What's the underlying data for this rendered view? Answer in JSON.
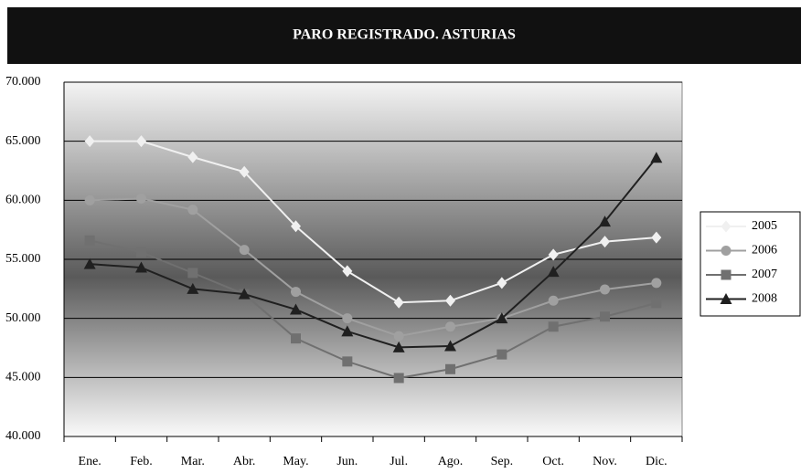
{
  "chart_data": {
    "type": "line",
    "title": "PARO REGISTRADO. ASTURIAS",
    "categories": [
      "Ene.",
      "Feb.",
      "Mar.",
      "Abr.",
      "May.",
      "Jun.",
      "Jul.",
      "Ago.",
      "Sep.",
      "Oct.",
      "Nov.",
      "Dic."
    ],
    "series": [
      {
        "name": "2005",
        "color": "#f0f0f0",
        "marker": "diamond",
        "values": [
          65000,
          65000,
          63650,
          62400,
          57800,
          54000,
          51350,
          51500,
          53000,
          55400,
          56500,
          56850
        ]
      },
      {
        "name": "2006",
        "color": "#a0a0a0",
        "marker": "circle",
        "values": [
          60000,
          60150,
          59200,
          55800,
          52250,
          50000,
          48500,
          49300,
          50000,
          51500,
          52450,
          53000
        ]
      },
      {
        "name": "2007",
        "color": "#707070",
        "marker": "square",
        "values": [
          56600,
          55600,
          53850,
          52050,
          48300,
          46350,
          44950,
          45700,
          46950,
          49300,
          50150,
          51300
        ]
      },
      {
        "name": "2008",
        "color": "#202020",
        "marker": "triangle",
        "values": [
          54600,
          54300,
          52500,
          52050,
          50750,
          48900,
          47550,
          47650,
          50000,
          53950,
          58200,
          63600
        ]
      }
    ],
    "ylim": [
      40000,
      70000
    ],
    "yticks": [
      {
        "value": 40000,
        "label": "40.000"
      },
      {
        "value": 45000,
        "label": "45.000"
      },
      {
        "value": 50000,
        "label": "50.000"
      },
      {
        "value": 55000,
        "label": "55.000"
      },
      {
        "value": 60000,
        "label": "60.000"
      },
      {
        "value": 65000,
        "label": "65.000"
      },
      {
        "value": 70000,
        "label": "70.000"
      }
    ],
    "grid": true,
    "legend": "right"
  }
}
